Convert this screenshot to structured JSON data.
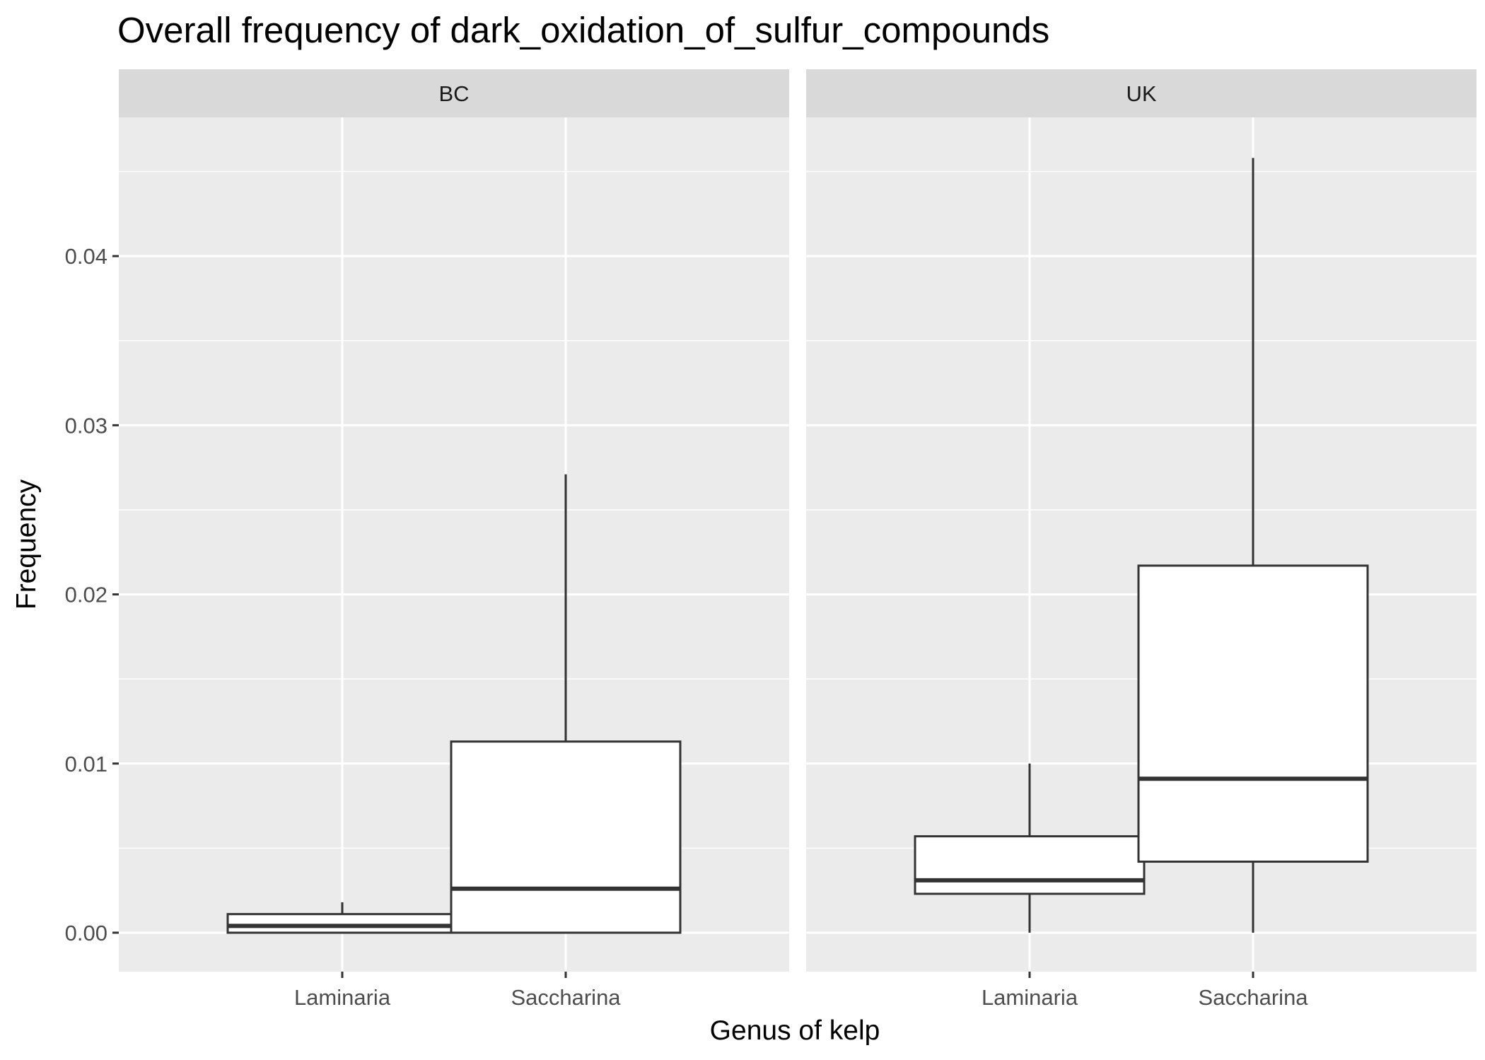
{
  "chart_data": {
    "type": "boxplot",
    "title": "Overall frequency of dark_oxidation_of_sulfur_compounds",
    "xlabel": "Genus of kelp",
    "ylabel": "Frequency",
    "ylim": [
      -0.0023,
      0.0482
    ],
    "y_ticks": [
      0.0,
      0.01,
      0.02,
      0.03,
      0.04
    ],
    "y_tick_labels": [
      "0.00",
      "0.01",
      "0.02",
      "0.03",
      "0.04"
    ],
    "categories": [
      "Laminaria",
      "Saccharina"
    ],
    "grid": true,
    "legend": "none",
    "colors": {
      "panel_bg": "#ebebeb",
      "strip_bg": "#d9d9d9",
      "grid": "#ffffff",
      "box_fill": "#ffffff",
      "box_stroke": "#333333"
    },
    "facets": [
      {
        "label": "BC",
        "boxes": [
          {
            "category": "Laminaria",
            "min": 0.0,
            "q1": 0.0,
            "median": 0.0004,
            "q3": 0.0011,
            "max": 0.0018
          },
          {
            "category": "Saccharina",
            "min": 0.0,
            "q1": 0.0,
            "median": 0.0026,
            "q3": 0.0113,
            "max": 0.0271
          }
        ]
      },
      {
        "label": "UK",
        "boxes": [
          {
            "category": "Laminaria",
            "min": 0.0,
            "q1": 0.0023,
            "median": 0.0031,
            "q3": 0.0057,
            "max": 0.01
          },
          {
            "category": "Saccharina",
            "min": 0.0,
            "q1": 0.0042,
            "median": 0.0091,
            "q3": 0.0217,
            "max": 0.0458
          }
        ]
      }
    ]
  }
}
